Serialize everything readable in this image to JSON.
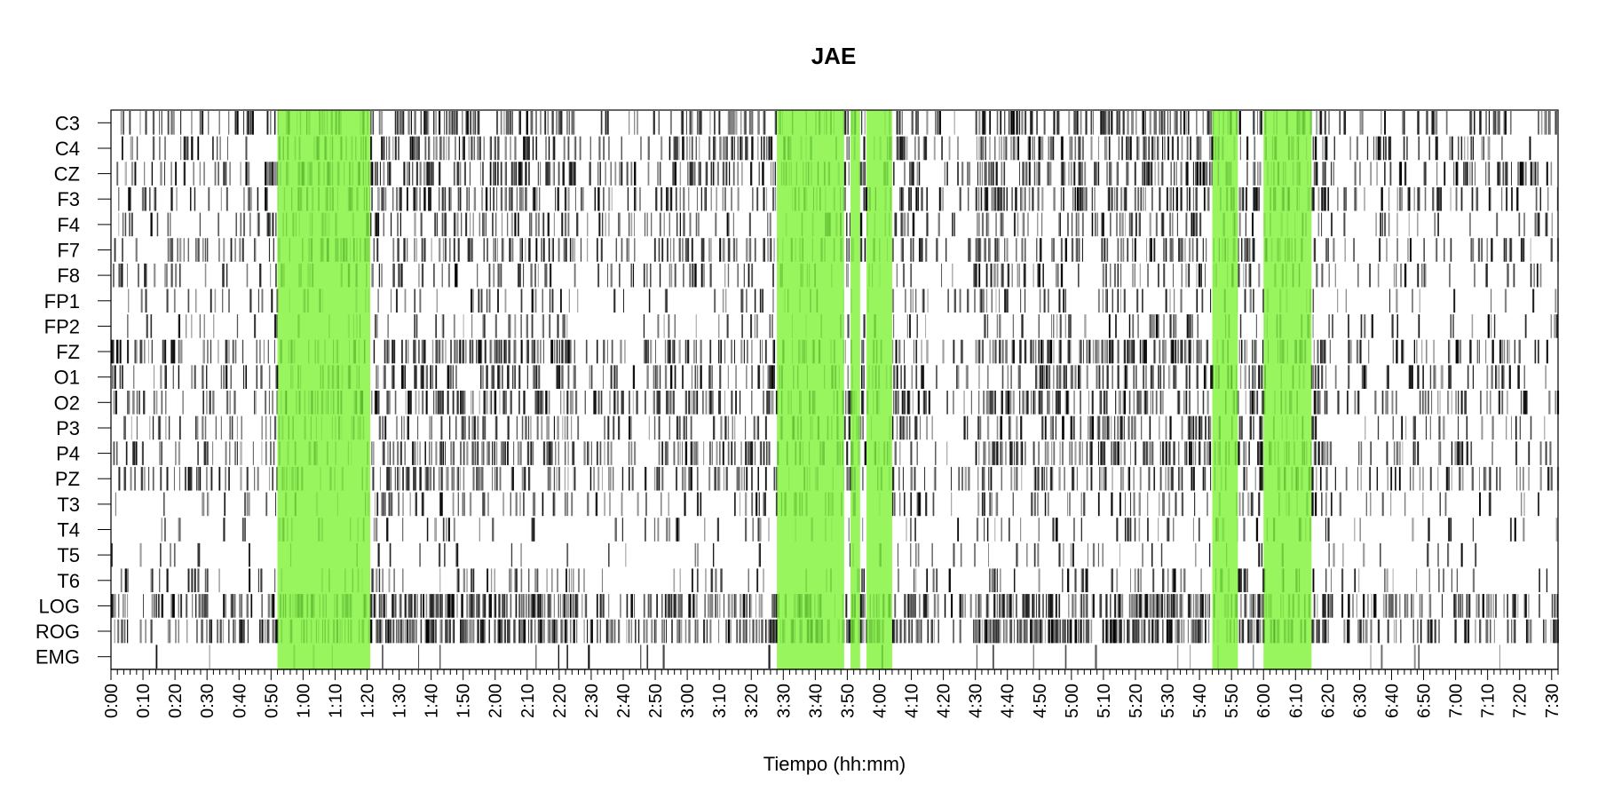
{
  "chart_data": {
    "type": "heatmap",
    "title": "JAE",
    "xlabel": "Tiempo (hh:mm)",
    "ylabel": "",
    "xlim_minutes": [
      0,
      452
    ],
    "x_tick_labels": [
      "0:00",
      "0:10",
      "0:20",
      "0:30",
      "0:40",
      "0:50",
      "1:00",
      "1:10",
      "1:20",
      "1:30",
      "1:40",
      "1:50",
      "2:00",
      "2:10",
      "2:20",
      "2:30",
      "2:40",
      "2:50",
      "3:00",
      "3:10",
      "3:20",
      "3:30",
      "3:40",
      "3:50",
      "4:00",
      "4:10",
      "4:20",
      "4:30",
      "4:40",
      "4:50",
      "5:00",
      "5:10",
      "5:20",
      "5:30",
      "5:40",
      "5:50",
      "6:00",
      "6:10",
      "6:20",
      "6:30",
      "6:40",
      "6:50",
      "7:00",
      "7:10",
      "7:20",
      "7:30"
    ],
    "channels": [
      "C3",
      "C4",
      "CZ",
      "F3",
      "F4",
      "F7",
      "F8",
      "FP1",
      "FP2",
      "FZ",
      "O1",
      "O2",
      "P3",
      "P4",
      "PZ",
      "T3",
      "T4",
      "T5",
      "T6",
      "LOG",
      "ROG",
      "EMG"
    ],
    "channel_density": [
      0.35,
      0.3,
      0.38,
      0.34,
      0.25,
      0.32,
      0.2,
      0.14,
      0.15,
      0.38,
      0.3,
      0.36,
      0.25,
      0.34,
      0.32,
      0.2,
      0.12,
      0.07,
      0.16,
      0.55,
      0.55,
      0.03
    ],
    "highlight_color": "#99f55e",
    "highlight_intervals": [
      {
        "start": "0:52",
        "end": "1:21"
      },
      {
        "start": "3:28",
        "end": "3:49"
      },
      {
        "start": "3:51",
        "end": "3:54"
      },
      {
        "start": "3:56",
        "end": "4:04"
      },
      {
        "start": "5:44",
        "end": "5:52"
      },
      {
        "start": "6:00",
        "end": "6:15"
      }
    ],
    "mark_color": "#000000",
    "grid": false
  }
}
